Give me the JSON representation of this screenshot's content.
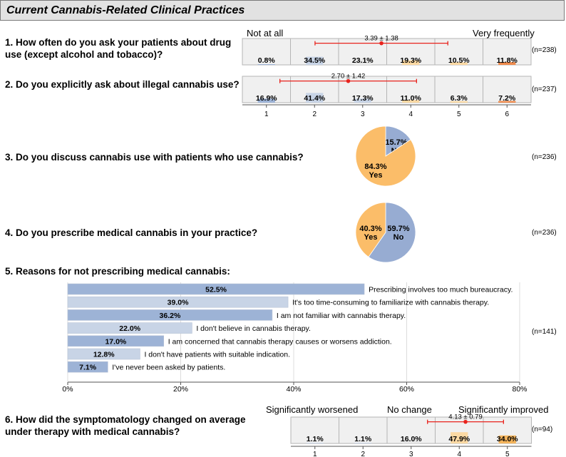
{
  "header": {
    "title": "Current Cannabis-Related Clinical Practices"
  },
  "q1": {
    "text": "1. How often do you ask your patients about drug use (except alcohol and tobacco)?",
    "n": "(n=238)"
  },
  "q2": {
    "text": "2. Do you explicitly ask about illegal cannabis use?",
    "n": "(n=237)"
  },
  "q3": {
    "text": "3. Do you discuss cannabis use with patients who use cannabis?",
    "n": "(n=236)"
  },
  "q4": {
    "text": "4. Do you prescribe medical cannabis in your practice?",
    "n": "(n=236)"
  },
  "q5": {
    "text": "5. Reasons for not prescribing medical cannabis:",
    "n": "(n=141)"
  },
  "q6": {
    "text": "6. How did the symptomatology changed on average under therapy with medical cannabis?",
    "n": "(n=94)"
  },
  "scale_labels": {
    "low": "Not at all",
    "high": "Very frequently"
  },
  "scale6_labels": {
    "low": "Significantly worsened",
    "mid": "No change",
    "high": "Significantly improved"
  },
  "colors": {
    "blue": "#9db3d6",
    "lightblue": "#c8d4e6",
    "lightorange": "#fcd9a3",
    "orange": "#f4b45c",
    "darkorange": "#ee8a4c",
    "pieblue": "#97acd2",
    "pieorange": "#fbbd69",
    "red": "#e8231d"
  },
  "chart_data": [
    {
      "type": "bar",
      "id": "q1",
      "title": "1. How often do you ask your patients about drug use (except alcohol and tobacco)?",
      "categories": [
        "1",
        "2",
        "3",
        "4",
        "5",
        "6"
      ],
      "values": [
        0.8,
        34.5,
        23.1,
        19.3,
        10.5,
        11.8
      ],
      "labels": [
        "0.8%",
        "34.5%",
        "23.1%",
        "19.3%",
        "10.5%",
        "11.8%"
      ],
      "mean": 3.39,
      "sd": 1.38,
      "mean_label": "3.39 ± 1.38",
      "n": 238
    },
    {
      "type": "bar",
      "id": "q2",
      "title": "2. Do you explicitly ask about illegal cannabis use?",
      "categories": [
        "1",
        "2",
        "3",
        "4",
        "5",
        "6"
      ],
      "values": [
        16.9,
        41.4,
        17.3,
        11.0,
        6.3,
        7.2
      ],
      "labels": [
        "16.9%",
        "41.4%",
        "17.3%",
        "11.0%",
        "6.3%",
        "7.2%"
      ],
      "mean": 2.7,
      "sd": 1.42,
      "mean_label": "2.70 ± 1.42",
      "n": 237
    },
    {
      "type": "pie",
      "id": "q3",
      "slices": [
        {
          "label": "No",
          "value": 15.7,
          "text": "15.7%"
        },
        {
          "label": "Yes",
          "value": 84.3,
          "text": "84.3%"
        }
      ]
    },
    {
      "type": "pie",
      "id": "q4",
      "slices": [
        {
          "label": "No",
          "value": 59.7,
          "text": "59.7%"
        },
        {
          "label": "Yes",
          "value": 40.3,
          "text": "40.3%"
        }
      ]
    },
    {
      "type": "bar",
      "id": "q5",
      "orientation": "horizontal",
      "categories": [
        "Prescribing involves too much bureaucracy.",
        "It's too time-consuming to familiarize with cannabis therapy.",
        "I am not familiar with cannabis therapy.",
        "I don't believe in cannabis therapy.",
        "I am concerned that cannabis therapy causes or worsens addiction.",
        "I don't have patients with suitable indication.",
        "I've never been asked by patients."
      ],
      "values": [
        52.5,
        39.0,
        36.2,
        22.0,
        17.0,
        12.8,
        7.1
      ],
      "labels": [
        "52.5%",
        "39.0%",
        "36.2%",
        "22.0%",
        "17.0%",
        "12.8%",
        "7.1%"
      ],
      "xlim": [
        0,
        80
      ],
      "xticks": [
        "0%",
        "20%",
        "40%",
        "60%",
        "80%"
      ]
    },
    {
      "type": "bar",
      "id": "q6",
      "categories": [
        "1",
        "2",
        "3",
        "4",
        "5"
      ],
      "values": [
        1.1,
        1.1,
        16.0,
        47.9,
        34.0
      ],
      "labels": [
        "1.1%",
        "1.1%",
        "16.0%",
        "47.9%",
        "34.0%"
      ],
      "mean": 4.13,
      "sd": 0.79,
      "mean_label": "4.13 ± 0.79",
      "n": 94
    }
  ]
}
